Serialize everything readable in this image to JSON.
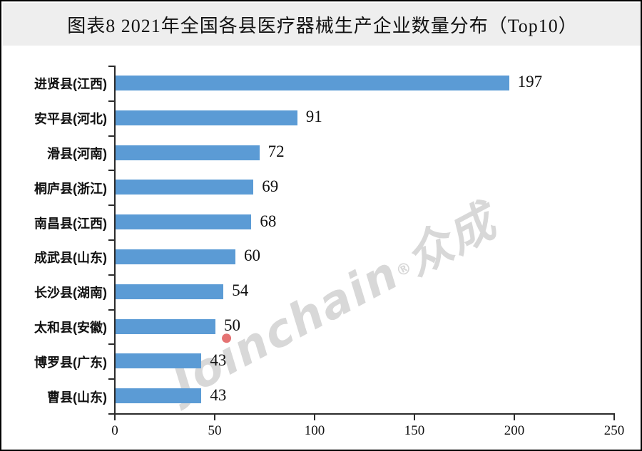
{
  "title": "图表8 2021年全国各县医疗器械生产企业数量分布（Top10）",
  "watermark": {
    "brand": "Joinchain",
    "reg": "®",
    "suffix": "众成",
    "gray_color": "#d8d8d8",
    "dot_color": "#e57373"
  },
  "chart_data": {
    "type": "bar",
    "orientation": "horizontal",
    "title": "图表8 2021年全国各县医疗器械生产企业数量分布（Top10）",
    "categories": [
      "进贤县(江西)",
      "安平县(河北)",
      "滑县(河南)",
      "桐庐县(浙江)",
      "南昌县(江西)",
      "成武县(山东)",
      "长沙县(湖南)",
      "太和县(安徽)",
      "博罗县(广东)",
      "曹县(山东)"
    ],
    "values": [
      197,
      91,
      72,
      69,
      68,
      60,
      54,
      50,
      43,
      43
    ],
    "xlabel": "",
    "ylabel": "",
    "xlim": [
      0,
      250
    ],
    "x_ticks": [
      0,
      50,
      100,
      150,
      200,
      250
    ],
    "grid": false,
    "legend": "none",
    "bar_color": "#5B9BD5",
    "axis_color": "#2b2b2b",
    "value_labels_shown": true
  }
}
